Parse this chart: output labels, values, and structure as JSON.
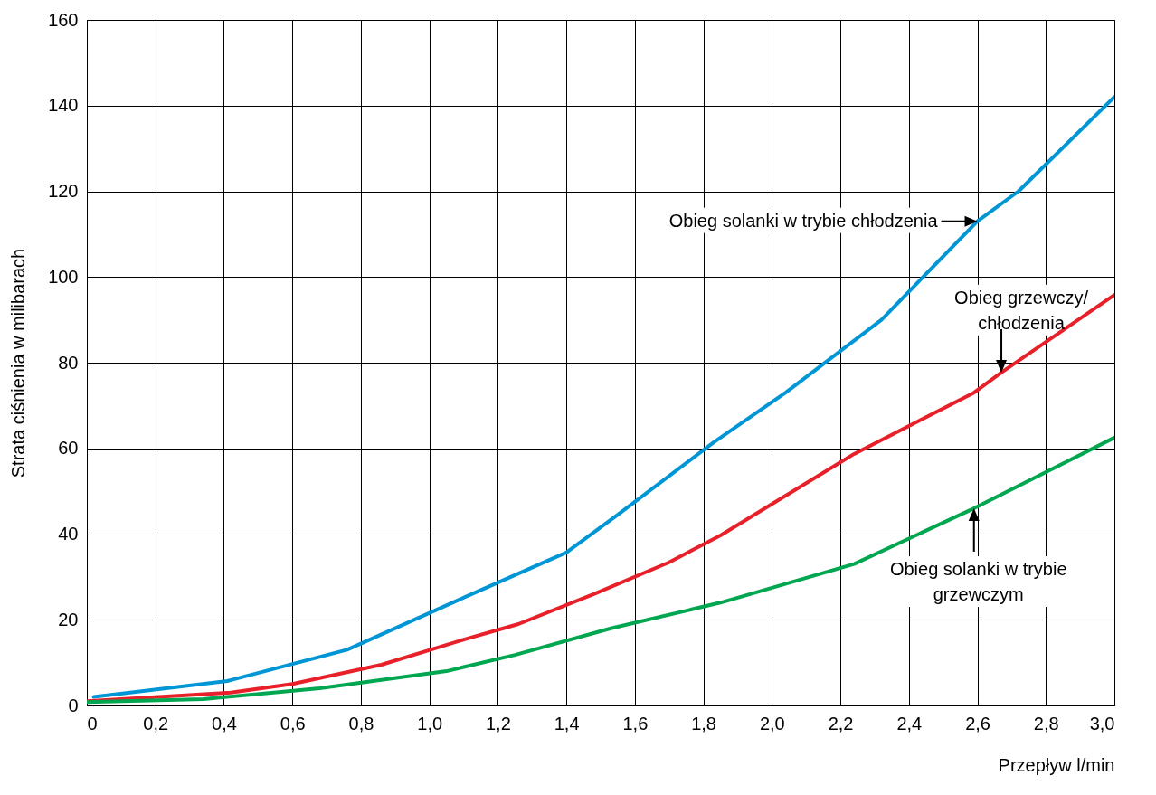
{
  "chart_data": {
    "type": "line",
    "xlabel": "Przepływ l/min",
    "ylabel": "Strata ciśnienia w milibarach",
    "xlim": [
      0,
      3.0
    ],
    "ylim": [
      0,
      160
    ],
    "xticks": [
      0,
      {
        "value": 0.2,
        "label": "0,2"
      },
      {
        "value": 0.4,
        "label": "0,4"
      },
      {
        "value": 0.6,
        "label": "0,6"
      },
      {
        "value": 0.8,
        "label": "0,8"
      },
      {
        "value": 1.0,
        "label": "1,0"
      },
      {
        "value": 1.2,
        "label": "1,2"
      },
      {
        "value": 1.4,
        "label": "1,4"
      },
      {
        "value": 1.6,
        "label": "1,6"
      },
      {
        "value": 1.8,
        "label": "1,8"
      },
      {
        "value": 2.0,
        "label": "2,0"
      },
      {
        "value": 2.2,
        "label": "2,2"
      },
      {
        "value": 2.4,
        "label": "2,4"
      },
      {
        "value": 2.6,
        "label": "2,6"
      },
      {
        "value": 2.8,
        "label": "2,8"
      },
      {
        "value": 3.0,
        "label": "3,0"
      }
    ],
    "yticks": [
      0,
      20,
      40,
      60,
      80,
      100,
      120,
      140,
      160
    ],
    "grid": true,
    "series": [
      {
        "color": "#0096d6",
        "x": [
          0.02,
          0.41,
          0.76,
          1.11,
          1.4,
          1.55,
          1.83,
          2.04,
          2.32,
          2.6,
          2.72,
          3.0
        ],
        "values": [
          2,
          5.7,
          13,
          25.5,
          35.7,
          44.5,
          61.4,
          73,
          90,
          113,
          120,
          142
        ]
      },
      {
        "color": "#e8202a",
        "x": [
          0,
          0.42,
          0.6,
          0.86,
          1.11,
          1.26,
          1.48,
          1.7,
          1.85,
          2.24,
          2.59,
          2.67,
          3.0
        ],
        "values": [
          1,
          3,
          5,
          9.5,
          15.6,
          19,
          26,
          33.4,
          39.7,
          58.7,
          73,
          77.7,
          95.8
        ]
      },
      {
        "color": "#00a650",
        "x": [
          0,
          0.34,
          0.68,
          1.05,
          1.25,
          1.53,
          1.85,
          2.24,
          2.59,
          3.0
        ],
        "values": [
          0.8,
          1.5,
          4,
          8,
          11.8,
          18,
          24,
          33,
          46,
          62.5
        ]
      }
    ],
    "annotations": [
      {
        "text": "Obieg solanki w trybie chłodzenia",
        "x": 2.6,
        "y": 113
      },
      {
        "text": "Obieg grzewczy/\nchłodzenia",
        "x": 2.67,
        "y": 77.7
      },
      {
        "text": "Obieg solanki w trybie\ngrzewczym",
        "x": 2.59,
        "y": 46
      }
    ]
  }
}
